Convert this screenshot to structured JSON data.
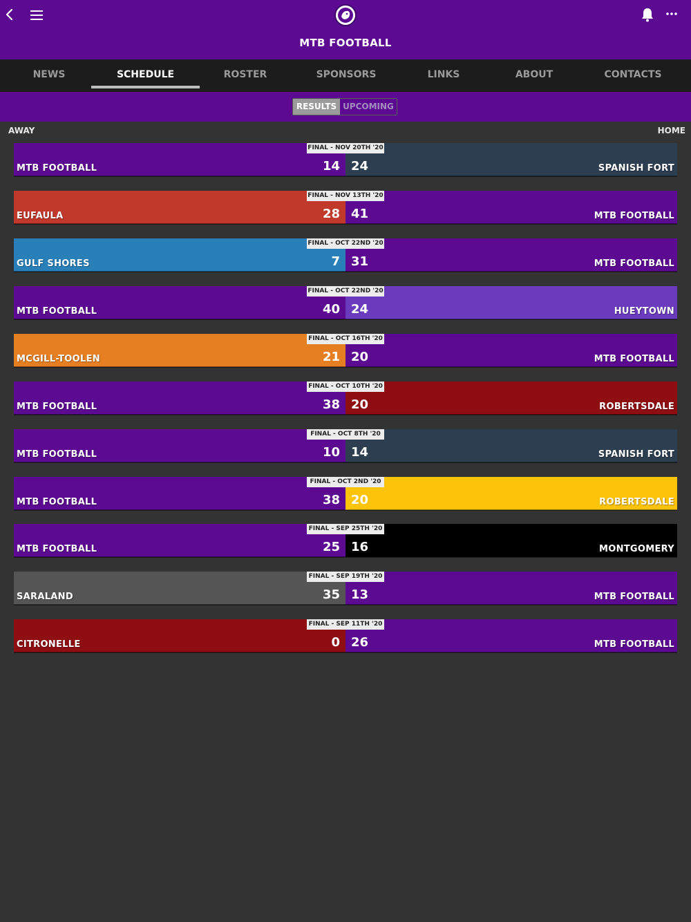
{
  "header": {
    "title": "MTB FOOTBALL",
    "back_icon": "chevron-left-icon",
    "menu_icon": "hamburger-menu-icon",
    "logo_icon": "lion-logo-icon",
    "bell_icon": "bell-icon",
    "more_icon": "ellipsis-icon",
    "color": "#5b0a91"
  },
  "tabs": [
    {
      "label": "NEWS"
    },
    {
      "label": "SCHEDULE",
      "active": true
    },
    {
      "label": "ROSTER"
    },
    {
      "label": "SPONSORS"
    },
    {
      "label": "LINKS"
    },
    {
      "label": "ABOUT"
    },
    {
      "label": "CONTACTS"
    }
  ],
  "segment": {
    "results": "RESULTS",
    "upcoming": "UPCOMING",
    "selected": "RESULTS"
  },
  "columns": {
    "away": "AWAY",
    "home": "HOME"
  },
  "games": [
    {
      "status": "FINAL - NOV 20TH '20",
      "away": {
        "name": "MTB FOOTBALL",
        "score": "14",
        "color": "#5b0a91"
      },
      "home": {
        "name": "SPANISH FORT",
        "score": "24",
        "color": "#2c3e50"
      }
    },
    {
      "status": "FINAL - NOV 13TH '20",
      "away": {
        "name": "EUFAULA",
        "score": "28",
        "color": "#c0392b"
      },
      "home": {
        "name": "MTB FOOTBALL",
        "score": "41",
        "color": "#5b0a91"
      }
    },
    {
      "status": "FINAL - OCT 22ND '20",
      "away": {
        "name": "GULF SHORES",
        "score": "7",
        "color": "#2980b9"
      },
      "home": {
        "name": "MTB FOOTBALL",
        "score": "31",
        "color": "#5b0a91"
      }
    },
    {
      "status": "FINAL - OCT 22ND '20",
      "away": {
        "name": "MTB FOOTBALL",
        "score": "40",
        "color": "#5b0a91"
      },
      "home": {
        "name": "HUEYTOWN",
        "score": "24",
        "color": "#6a3bbd"
      }
    },
    {
      "status": "FINAL - OCT 16TH '20",
      "away": {
        "name": "MCGILL-TOOLEN",
        "score": "21",
        "color": "#e67e22"
      },
      "home": {
        "name": "MTB FOOTBALL",
        "score": "20",
        "color": "#5b0a91"
      }
    },
    {
      "status": "FINAL - OCT 10TH '20",
      "away": {
        "name": "MTB FOOTBALL",
        "score": "38",
        "color": "#5b0a91"
      },
      "home": {
        "name": "ROBERTSDALE",
        "score": "20",
        "color": "#8e0e12"
      }
    },
    {
      "status": "FINAL - OCT 8TH '20",
      "away": {
        "name": "MTB FOOTBALL",
        "score": "10",
        "color": "#5b0a91"
      },
      "home": {
        "name": "SPANISH FORT",
        "score": "14",
        "color": "#2c3e50"
      }
    },
    {
      "status": "FINAL - OCT 2ND '20",
      "away": {
        "name": "MTB FOOTBALL",
        "score": "38",
        "color": "#5b0a91"
      },
      "home": {
        "name": "ROBERTSDALE",
        "score": "20",
        "color": "#fbc30a"
      }
    },
    {
      "status": "FINAL - SEP 25TH '20",
      "away": {
        "name": "MTB FOOTBALL",
        "score": "25",
        "color": "#5b0a91"
      },
      "home": {
        "name": "MONTGOMERY",
        "score": "16",
        "color": "#000000"
      }
    },
    {
      "status": "FINAL - SEP 19TH '20",
      "away": {
        "name": "SARALAND",
        "score": "35",
        "color": "#555555"
      },
      "home": {
        "name": "MTB FOOTBALL",
        "score": "13",
        "color": "#5b0a91"
      }
    },
    {
      "status": "FINAL - SEP 11TH '20",
      "away": {
        "name": "CITRONELLE",
        "score": "0",
        "color": "#8e0e12"
      },
      "home": {
        "name": "MTB FOOTBALL",
        "score": "26",
        "color": "#5b0a91"
      }
    }
  ]
}
